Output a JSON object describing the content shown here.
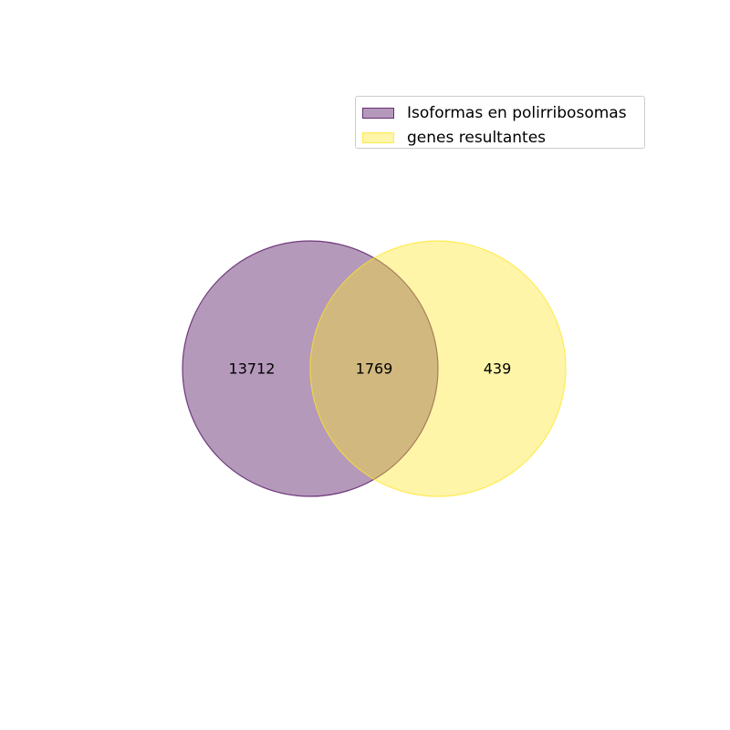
{
  "sets": [
    {
      "name": "Isoformas en polirribosomas",
      "color": "#440154",
      "alpha": 0.4
    },
    {
      "name": "genes resultantes",
      "color": "#fde725",
      "alpha": 0.4
    }
  ],
  "regions": {
    "only_a": "13712",
    "overlap": "1769",
    "only_b": "439"
  },
  "legend": {
    "position": "upper-right",
    "items": [
      {
        "label": "Isoformas en polirribosomas"
      },
      {
        "label": "genes resultantes"
      }
    ]
  }
}
